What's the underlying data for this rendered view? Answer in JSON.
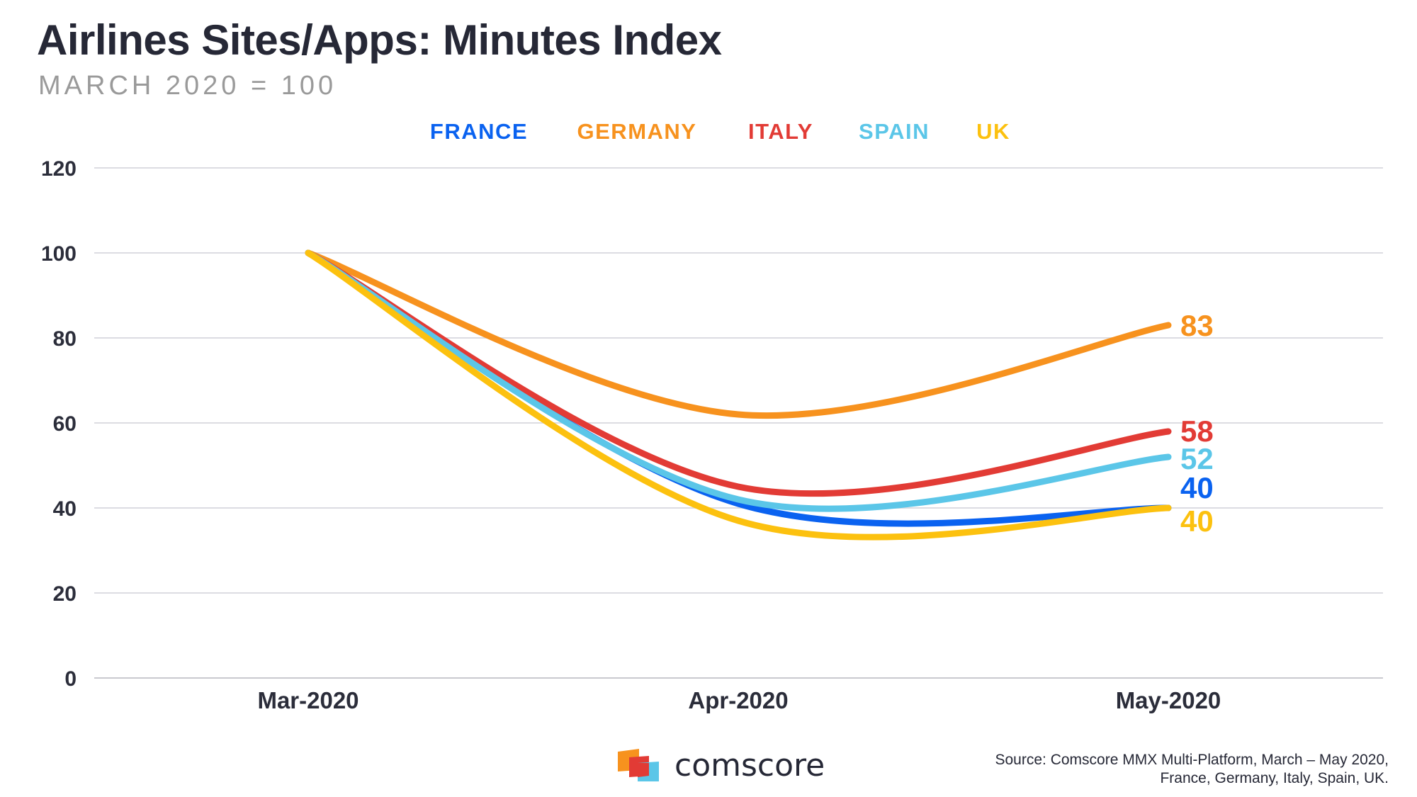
{
  "title": "Airlines Sites/Apps: Minutes Index",
  "subtitle": "MARCH 2020 = 100",
  "source": {
    "line1": "Source: Comscore MMX Multi-Platform, March – May 2020,",
    "line2": "France, Germany, Italy, Spain, UK."
  },
  "brand": {
    "name": "comscore",
    "logo_icon": "comscore-logo-icon"
  },
  "chart_data": {
    "type": "line",
    "title": "Airlines Sites/Apps: Minutes Index",
    "subtitle": "MARCH 2020 = 100",
    "categories": [
      "Mar-2020",
      "Apr-2020",
      "May-2020"
    ],
    "ylim": [
      0,
      120
    ],
    "yticks": [
      0,
      20,
      40,
      60,
      80,
      100,
      120
    ],
    "grid": true,
    "legend_position": "top-center",
    "series": [
      {
        "name": "FRANCE",
        "color": "#0a62f0",
        "values": [
          100,
          41,
          40
        ],
        "end_label": "40"
      },
      {
        "name": "GERMANY",
        "color": "#f7921e",
        "values": [
          100,
          62,
          83
        ],
        "end_label": "83"
      },
      {
        "name": "ITALY",
        "color": "#e23b35",
        "values": [
          100,
          45,
          58
        ],
        "end_label": "58"
      },
      {
        "name": "SPAIN",
        "color": "#5bc6e8",
        "values": [
          100,
          42,
          52
        ],
        "end_label": "52"
      },
      {
        "name": "UK",
        "color": "#fcc10f",
        "values": [
          100,
          37,
          40
        ],
        "end_label": "40"
      }
    ]
  }
}
